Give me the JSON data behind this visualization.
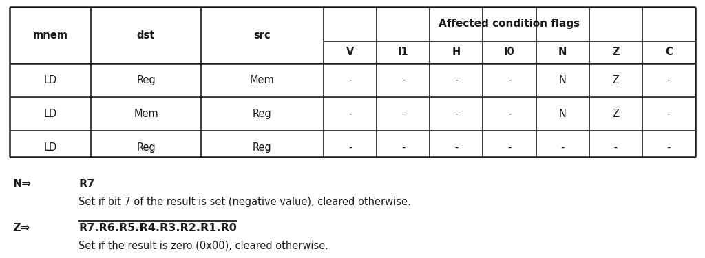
{
  "col_headers_top": [
    "mnem",
    "dst",
    "src",
    "Affected condition flags"
  ],
  "col_headers_bot": [
    "V",
    "I1",
    "H",
    "I0",
    "N",
    "Z",
    "C"
  ],
  "table_rows": [
    [
      "LD",
      "Reg",
      "Mem",
      "-",
      "-",
      "-",
      "-",
      "N",
      "Z",
      "-"
    ],
    [
      "LD",
      "Mem",
      "Reg",
      "-",
      "-",
      "-",
      "-",
      "N",
      "Z",
      "-"
    ],
    [
      "LD",
      "Reg",
      "Reg",
      "-",
      "-",
      "-",
      "-",
      "-",
      "-",
      "-"
    ]
  ],
  "note_N_label": "N⇒",
  "note_N_reg": "R7",
  "note_N_desc": "Set if bit 7 of the result is set (negative value), cleared otherwise.",
  "note_Z_label": "Z⇒",
  "note_Z_regs": [
    "R7",
    "R6",
    "R5",
    "R4",
    "R3",
    "R2",
    "R1",
    "R0"
  ],
  "note_Z_desc": "Set if the result is zero (0x00), cleared otherwise.",
  "bg_color": "#ffffff",
  "line_color": "#1a1a1a",
  "text_color": "#1a1a1a",
  "font_family": "DejaVu Sans",
  "header_fs": 10.5,
  "cell_fs": 10.5,
  "note_fs": 11.5,
  "note_small_fs": 10.5
}
